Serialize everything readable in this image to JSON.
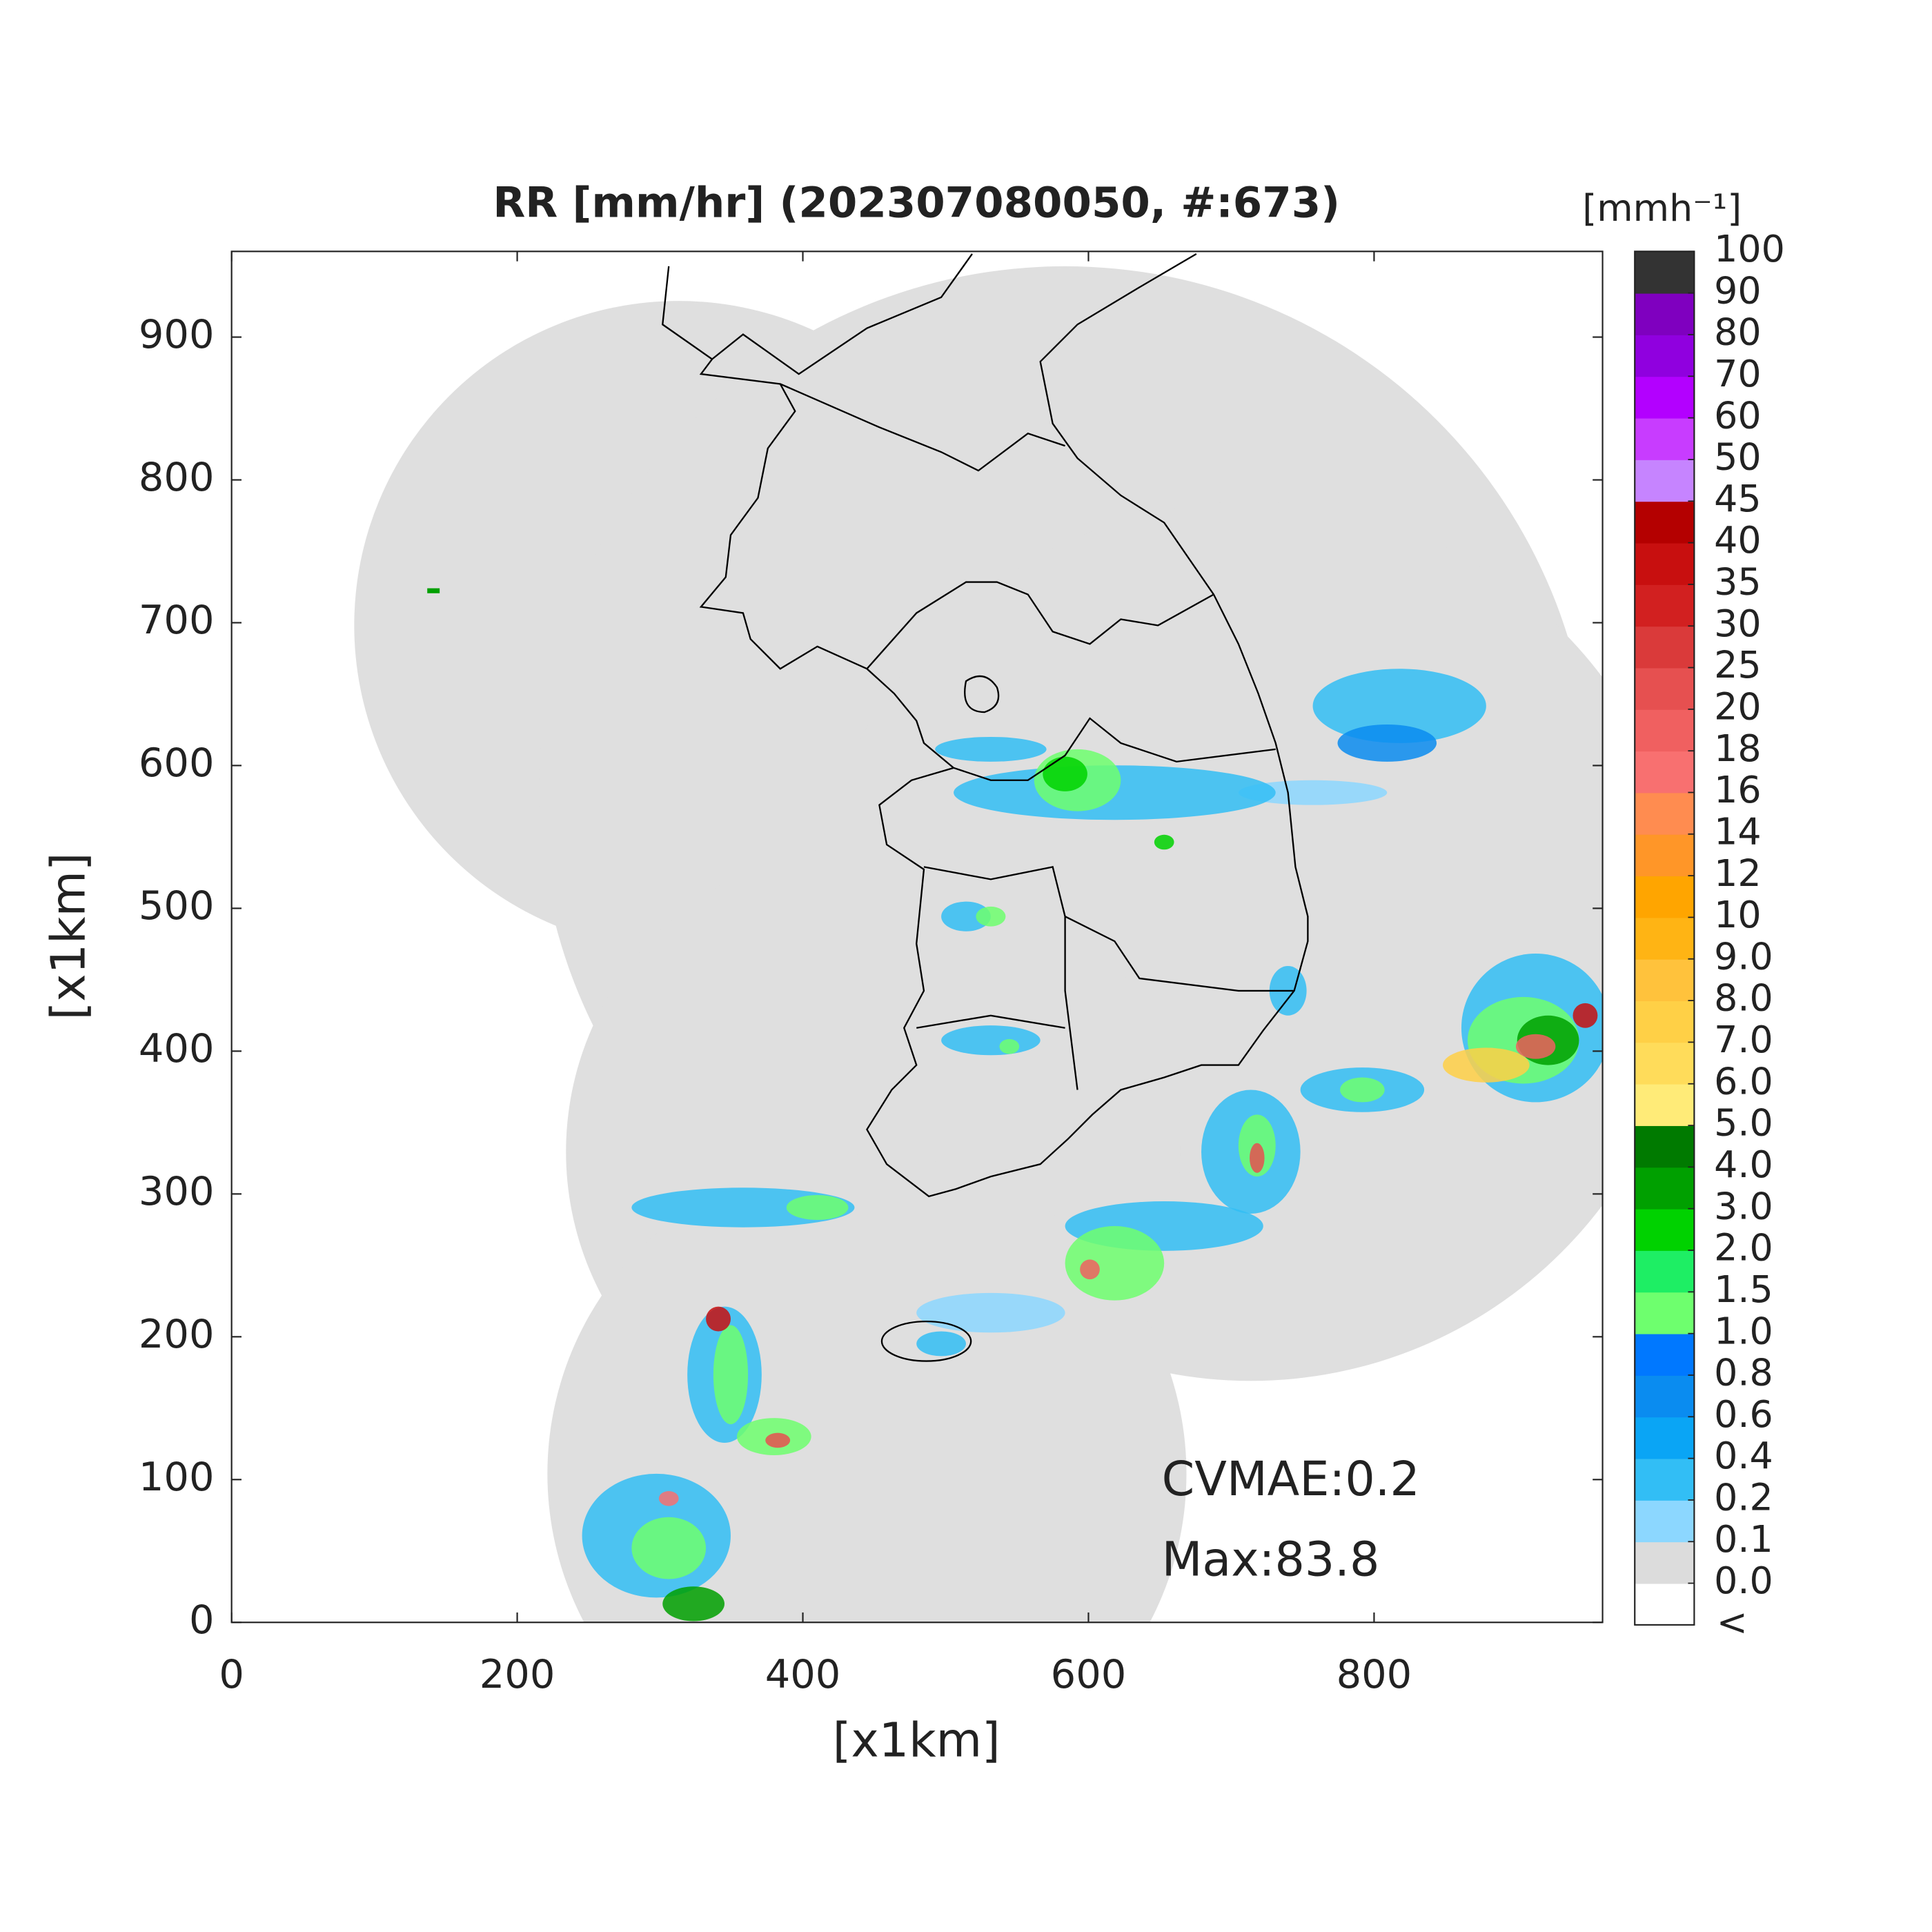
{
  "title": "RR [mm/hr] (202307080050, #:673)",
  "xaxis": {
    "label": "[x1km]",
    "lim": [
      0,
      960
    ],
    "ticks": [
      0,
      200,
      400,
      600,
      800
    ]
  },
  "yaxis": {
    "label": "[x1km]",
    "lim": [
      0,
      960
    ],
    "ticks": [
      0,
      100,
      200,
      300,
      400,
      500,
      600,
      700,
      800,
      900
    ]
  },
  "colorbar": {
    "title": "[mmh⁻¹]",
    "below_label": "<",
    "ticks": [
      {
        "value": 0,
        "label": "0.0"
      },
      0.1,
      0.2,
      0.4,
      0.6,
      0.8,
      {
        "value": 1,
        "label": "1.0"
      },
      1.5,
      {
        "value": 2,
        "label": "2.0"
      },
      {
        "value": 3,
        "label": "3.0"
      },
      {
        "value": 4,
        "label": "4.0"
      },
      {
        "value": 5,
        "label": "5.0"
      },
      {
        "value": 6,
        "label": "6.0"
      },
      {
        "value": 7,
        "label": "7.0"
      },
      {
        "value": 8,
        "label": "8.0"
      },
      {
        "value": 9,
        "label": "9.0"
      },
      10,
      12,
      14,
      16,
      18,
      20,
      25,
      30,
      35,
      40,
      45,
      50,
      60,
      70,
      80,
      90,
      100
    ],
    "below_color": "#ffffff",
    "colors": [
      "#dcdcdc",
      "#8cd7ff",
      "#32bef5",
      "#0aa5f5",
      "#0a8cf0",
      "#0078ff",
      "#6eff6e",
      "#1eee64",
      "#00d200",
      "#00a000",
      "#007a00",
      "#ffeb78",
      "#ffdc5a",
      "#ffd046",
      "#ffc23c",
      "#ffb414",
      "#ffa500",
      "#ff9628",
      "#ff8c50",
      "#f87070",
      "#f06060",
      "#e65050",
      "#da3a3a",
      "#d22020",
      "#c80f0f",
      "#b40000",
      "#c684ff",
      "#c83cff",
      "#b300ff",
      "#9000df",
      "#7f00bf",
      "#333333"
    ]
  },
  "annotations": [
    "CVMAE:0.2",
    "Max:83.8"
  ]
}
